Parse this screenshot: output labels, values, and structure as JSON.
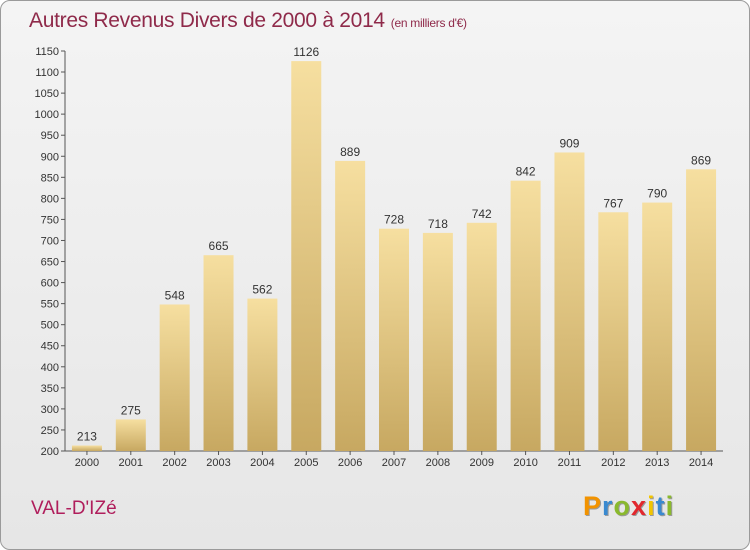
{
  "title": "Autres Revenus Divers de 2000 à 2014",
  "subtitle": "(en milliers d'€)",
  "commune": "VAL-D'IZé",
  "logo": {
    "letters": [
      "P",
      "r",
      "o",
      "x",
      "i",
      "t",
      "i"
    ],
    "colors": [
      "#f29300",
      "#3a8ad0",
      "#8ab92d",
      "#e2282e",
      "#f2c500",
      "#3a8ad0",
      "#8ab92d"
    ]
  },
  "colors": {
    "bar_top": "#f6dfa0",
    "bar_bottom": "#c7a861",
    "title": "#8f2a4a",
    "commune": "#b01e5c"
  },
  "chart_data": {
    "type": "bar",
    "categories": [
      "2000",
      "2001",
      "2002",
      "2003",
      "2004",
      "2005",
      "2006",
      "2007",
      "2008",
      "2009",
      "2010",
      "2011",
      "2012",
      "2013",
      "2014"
    ],
    "values": [
      213,
      275,
      548,
      665,
      562,
      1126,
      889,
      728,
      718,
      742,
      842,
      909,
      767,
      790,
      869
    ],
    "ylim": [
      200,
      1150
    ],
    "yticks": [
      200,
      250,
      300,
      350,
      400,
      450,
      500,
      550,
      600,
      650,
      700,
      750,
      800,
      850,
      900,
      950,
      1000,
      1050,
      1100,
      1150
    ],
    "xlabel": "",
    "ylabel": "",
    "grid": false
  }
}
